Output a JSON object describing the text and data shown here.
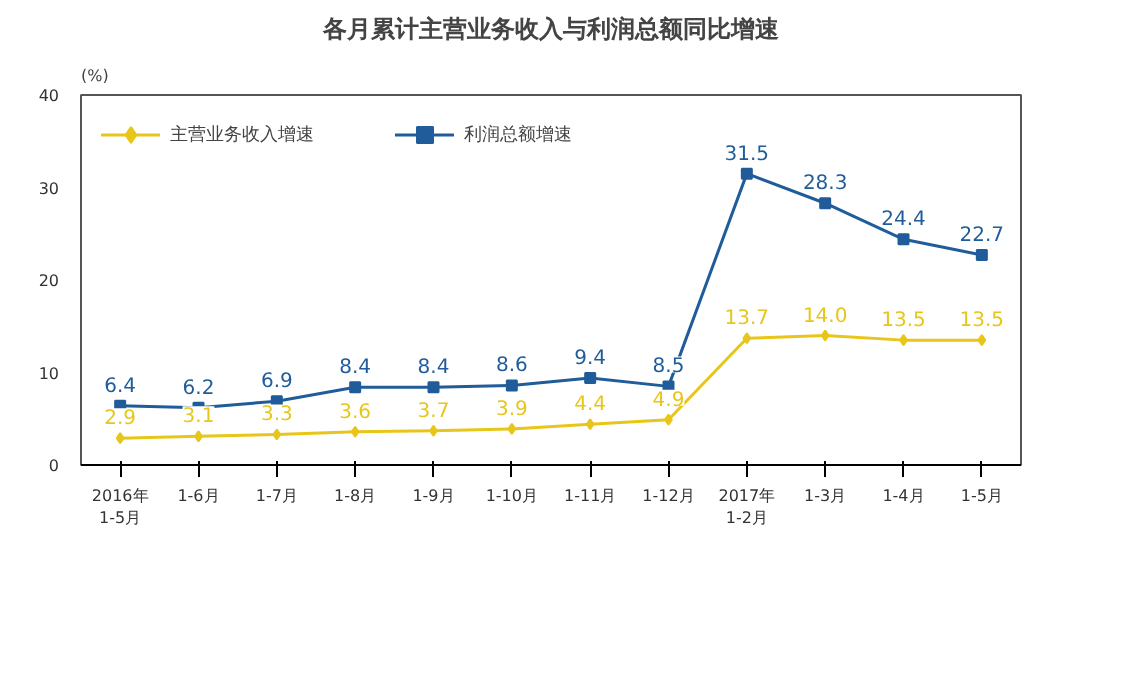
{
  "chart_data": {
    "type": "line",
    "title": "各月累计主营业务收入与利润总额同比增速",
    "ylabel": "(%)",
    "categories": [
      "2016年\n1-5月",
      "1-6月",
      "1-7月",
      "1-8月",
      "1-9月",
      "1-10月",
      "1-11月",
      "1-12月",
      "2017年\n1-2月",
      "1-3月",
      "1-4月",
      "1-5月"
    ],
    "series": [
      {
        "name": "主营业务收入增速",
        "color": "#e8c619",
        "marker": "diamond",
        "values": [
          2.9,
          3.1,
          3.3,
          3.6,
          3.7,
          3.9,
          4.4,
          4.9,
          13.7,
          14.0,
          13.5,
          13.5
        ],
        "value_labels": [
          "2.9",
          "3.1",
          "3.3",
          "3.6",
          "3.7",
          "3.9",
          "4.4",
          "4.9",
          "13.7",
          "14.0",
          "13.5",
          "13.5"
        ]
      },
      {
        "name": "利润总额增速",
        "color": "#1f5c99",
        "marker": "square",
        "values": [
          6.4,
          6.2,
          6.9,
          8.4,
          8.4,
          8.6,
          9.4,
          8.5,
          31.5,
          28.3,
          24.4,
          22.7
        ],
        "value_labels": [
          "6.4",
          "6.2",
          "6.9",
          "8.4",
          "8.4",
          "8.6",
          "9.4",
          "8.5",
          "31.5",
          "28.3",
          "24.4",
          "22.7"
        ]
      }
    ],
    "ylim": [
      0,
      40
    ],
    "yticks": [
      0,
      10,
      20,
      30,
      40
    ],
    "grid": false,
    "legend": "top left",
    "line_style": "solid"
  }
}
